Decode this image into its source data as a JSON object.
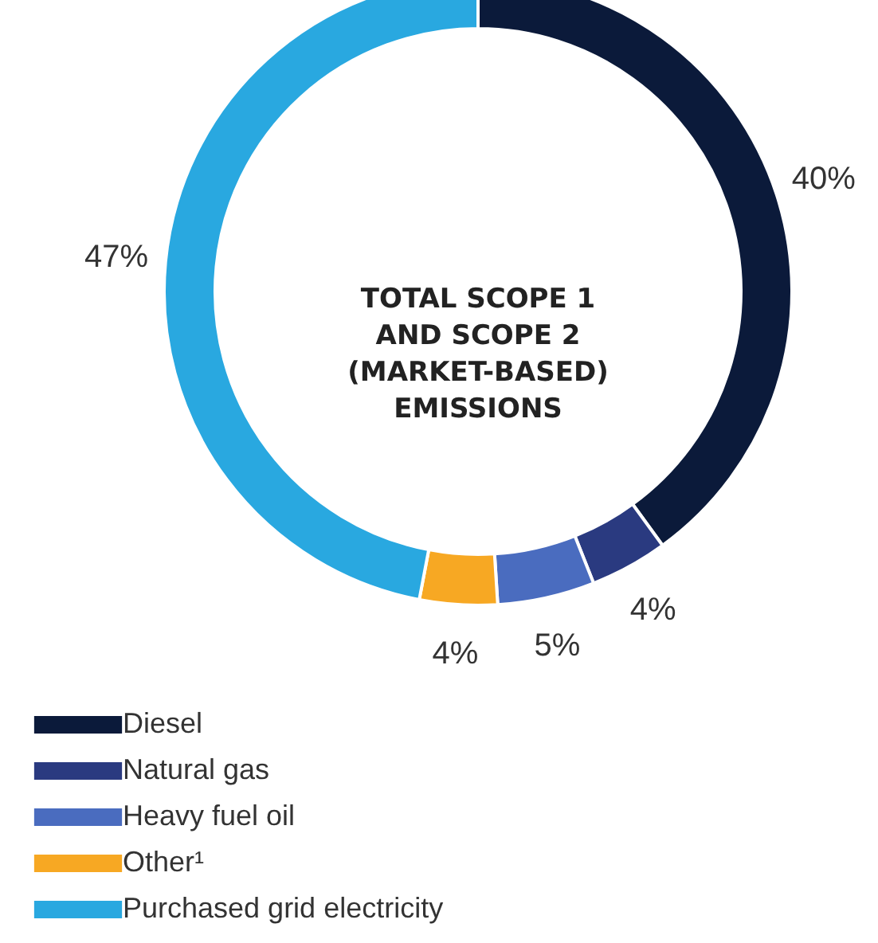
{
  "chart_data": {
    "type": "donut",
    "title": "TOTAL SCOPE 1\nAND SCOPE 2\n(MARKET-BASED)\nEMISSIONS",
    "categories": [
      "Diesel",
      "Natural gas",
      "Heavy fuel oil",
      "Other¹",
      "Purchased grid electricity"
    ],
    "values": [
      40,
      4,
      5,
      4,
      47
    ],
    "colors": [
      "#0b1a3a",
      "#2a3a80",
      "#4a6cbf",
      "#f7a823",
      "#29a8e0"
    ],
    "value_labels": [
      "40%",
      "4%",
      "5%",
      "4%",
      "47%"
    ],
    "legend": "bottom left"
  }
}
